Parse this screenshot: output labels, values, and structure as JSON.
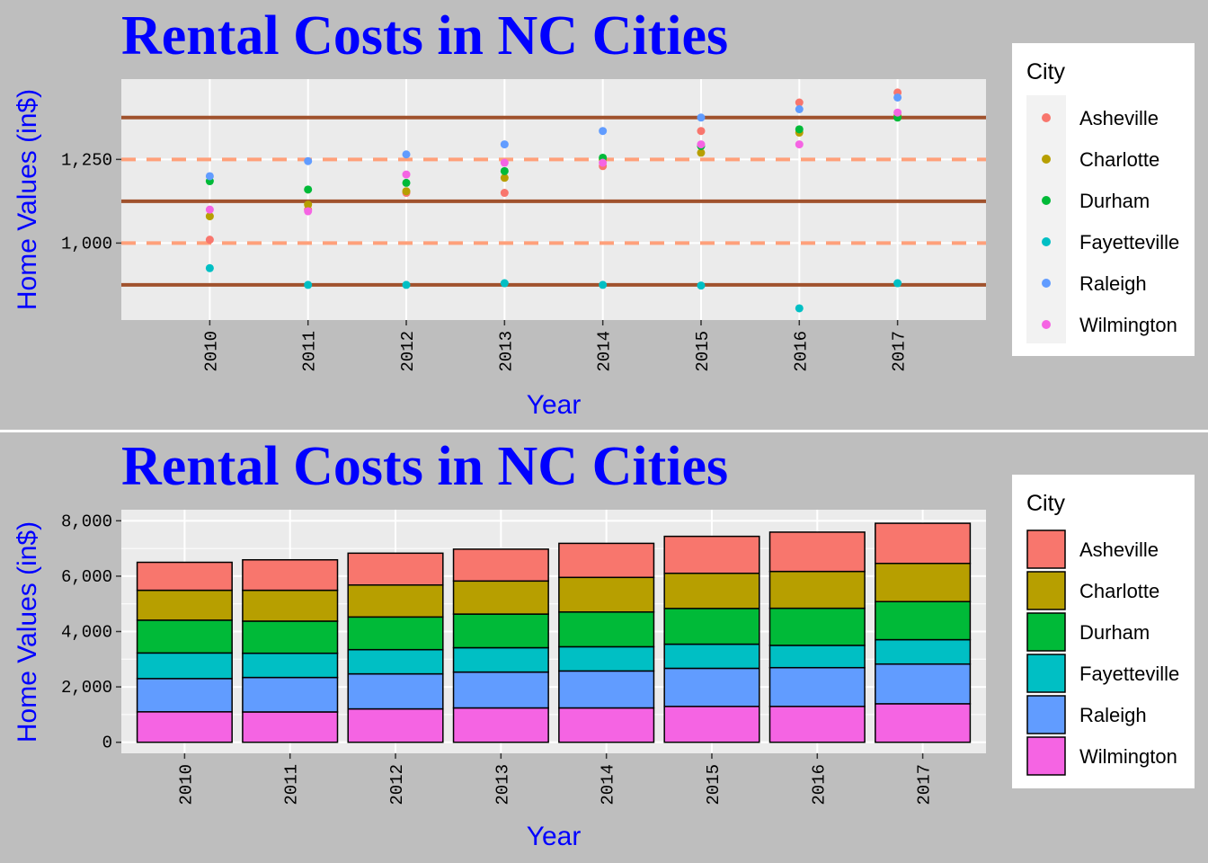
{
  "colors": {
    "page_background": "#bebebe",
    "panel_background": "#ebebeb",
    "title": "#0000ff",
    "solid_hline": "#a0522d",
    "dashed_hline": "#ffa07a"
  },
  "chart_data": [
    {
      "type": "scatter",
      "title": "Rental Costs in NC Cities",
      "xlabel": "Year",
      "ylabel": "Home Values (in$)",
      "x": [
        "2010",
        "2011",
        "2012",
        "2013",
        "2014",
        "2015",
        "2016",
        "2017"
      ],
      "y_ticks": [
        "1,000",
        "1,250"
      ],
      "y_tick_values": [
        1000,
        1250
      ],
      "ylim": [
        770,
        1490
      ],
      "grid": true,
      "legend_title": "City",
      "legend_position": "right",
      "reference_lines": [
        {
          "y": 875,
          "style": "solid"
        },
        {
          "y": 1000,
          "style": "dashed"
        },
        {
          "y": 1125,
          "style": "solid"
        },
        {
          "y": 1250,
          "style": "dashed"
        },
        {
          "y": 1375,
          "style": "solid"
        }
      ],
      "series": [
        {
          "name": "Asheville",
          "color": "#f8766d",
          "values": [
            1010,
            1100,
            1150,
            1150,
            1230,
            1335,
            1420,
            1450
          ]
        },
        {
          "name": "Charlotte",
          "color": "#b79f00",
          "values": [
            1080,
            1115,
            1155,
            1195,
            1250,
            1270,
            1330,
            1380
          ]
        },
        {
          "name": "Durham",
          "color": "#00ba38",
          "values": [
            1185,
            1160,
            1180,
            1215,
            1255,
            1290,
            1340,
            1375
          ]
        },
        {
          "name": "Fayetteville",
          "color": "#00bfc4",
          "values": [
            925,
            875,
            875,
            880,
            875,
            873,
            805,
            880
          ]
        },
        {
          "name": "Raleigh",
          "color": "#619cff",
          "values": [
            1200,
            1245,
            1265,
            1295,
            1335,
            1375,
            1400,
            1435
          ]
        },
        {
          "name": "Wilmington",
          "color": "#f564e3",
          "values": [
            1100,
            1095,
            1205,
            1240,
            1240,
            1295,
            1295,
            1390
          ]
        }
      ]
    },
    {
      "type": "bar",
      "stacked": true,
      "title": "Rental Costs in NC Cities",
      "xlabel": "Year",
      "ylabel": "Home Values (in$)",
      "categories": [
        "2010",
        "2011",
        "2012",
        "2013",
        "2014",
        "2015",
        "2016",
        "2017"
      ],
      "y_ticks": [
        "0",
        "2,000",
        "4,000",
        "6,000",
        "8,000"
      ],
      "y_tick_values": [
        0,
        2000,
        4000,
        6000,
        8000
      ],
      "ylim": [
        -400,
        8400
      ],
      "grid": true,
      "legend_title": "City",
      "legend_position": "right",
      "series": [
        {
          "name": "Asheville",
          "color": "#f8766d",
          "values": [
            1010,
            1100,
            1150,
            1150,
            1230,
            1335,
            1420,
            1450
          ]
        },
        {
          "name": "Charlotte",
          "color": "#b79f00",
          "values": [
            1080,
            1115,
            1155,
            1195,
            1250,
            1270,
            1330,
            1380
          ]
        },
        {
          "name": "Durham",
          "color": "#00ba38",
          "values": [
            1185,
            1160,
            1180,
            1215,
            1255,
            1290,
            1340,
            1375
          ]
        },
        {
          "name": "Fayetteville",
          "color": "#00bfc4",
          "values": [
            925,
            875,
            875,
            880,
            875,
            873,
            805,
            880
          ]
        },
        {
          "name": "Raleigh",
          "color": "#619cff",
          "values": [
            1200,
            1245,
            1265,
            1295,
            1335,
            1375,
            1400,
            1435
          ]
        },
        {
          "name": "Wilmington",
          "color": "#f564e3",
          "values": [
            1100,
            1095,
            1205,
            1240,
            1240,
            1295,
            1295,
            1390
          ]
        }
      ]
    }
  ]
}
